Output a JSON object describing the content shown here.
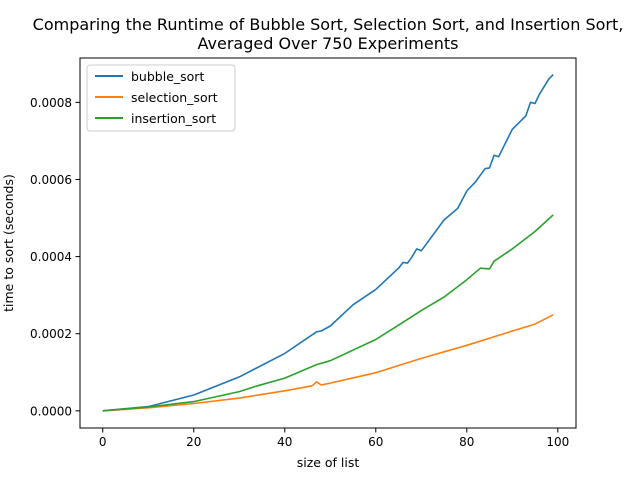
{
  "chart_data": {
    "type": "line",
    "title": "Comparing the Runtime of Bubble Sort, Selection Sort, and Insertion Sort,",
    "subtitle": "Averaged Over 750 Experiments",
    "xlabel": "size of list",
    "ylabel": "time to sort (seconds)",
    "xlim": [
      -5,
      104
    ],
    "ylim": [
      -4.45e-05,
      0.000915
    ],
    "xticks": [
      0,
      20,
      40,
      60,
      80,
      100
    ],
    "xtick_labels": [
      "0",
      "20",
      "40",
      "60",
      "80",
      "100"
    ],
    "yticks": [
      0,
      0.0002,
      0.0004,
      0.0006,
      0.0008
    ],
    "ytick_labels": [
      "0.0000",
      "0.0002",
      "0.0004",
      "0.0006",
      "0.0008"
    ],
    "legend_position": "top-left",
    "grid": false,
    "series": [
      {
        "name": "bubble_sort",
        "color": "#1f77b4",
        "x": [
          0,
          10,
          20,
          30,
          40,
          47,
          48,
          50,
          55,
          60,
          65,
          66,
          67,
          68,
          69,
          70,
          75,
          78,
          80,
          82,
          84,
          85,
          86,
          87,
          90,
          93,
          94,
          95,
          96,
          98,
          99
        ],
        "y": [
          0,
          1.1e-05,
          4.1e-05,
          8.8e-05,
          0.000149,
          0.000205,
          0.000207,
          0.00022,
          0.000275,
          0.000315,
          0.00037,
          0.000385,
          0.000383,
          0.0004,
          0.00042,
          0.000415,
          0.000495,
          0.000525,
          0.00057,
          0.000595,
          0.000628,
          0.00063,
          0.000663,
          0.000659,
          0.00073,
          0.000765,
          0.0008,
          0.000797,
          0.000822,
          0.00086,
          0.000872
        ]
      },
      {
        "name": "selection_sort",
        "color": "#ff7f0e",
        "x": [
          0,
          10,
          20,
          30,
          40,
          46,
          47,
          48,
          50,
          60,
          70,
          80,
          90,
          95,
          99
        ],
        "y": [
          0,
          8e-06,
          1.9e-05,
          3.3e-05,
          5.2e-05,
          6.5e-05,
          7.5e-05,
          6.7e-05,
          7.2e-05,
          9.9e-05,
          0.000136,
          0.00017,
          0.000207,
          0.000225,
          0.000249
        ]
      },
      {
        "name": "insertion_sort",
        "color": "#2ca02c",
        "x": [
          0,
          10,
          20,
          30,
          34,
          40,
          47,
          50,
          60,
          65,
          70,
          75,
          80,
          83,
          85,
          86,
          90,
          95,
          99
        ],
        "y": [
          0,
          1e-05,
          2.4e-05,
          5e-05,
          6.5e-05,
          8.5e-05,
          0.00012,
          0.00013,
          0.000185,
          0.000222,
          0.00026,
          0.000295,
          0.00034,
          0.00037,
          0.000368,
          0.000388,
          0.00042,
          0.000465,
          0.000508
        ]
      }
    ]
  }
}
